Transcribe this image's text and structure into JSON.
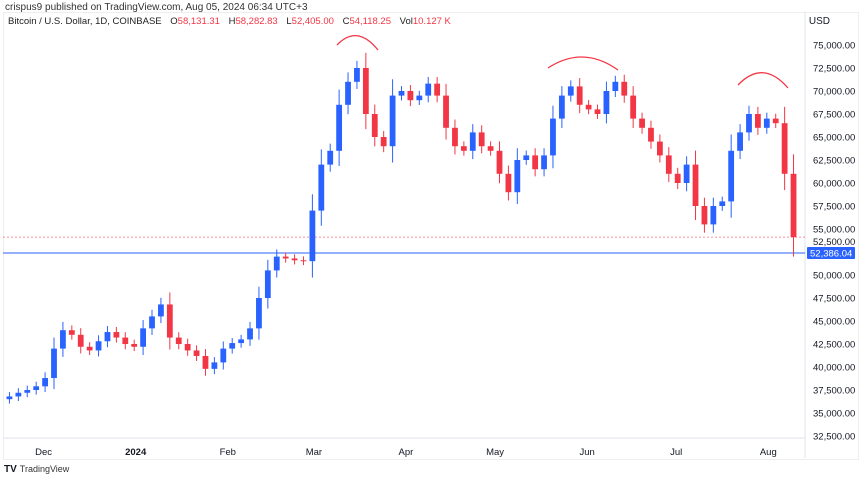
{
  "publisher": "crispus9 published on TradingView.com, Aug 05, 2024 06:34 UTC+3",
  "legend": {
    "symbol": "Bitcoin / U.S. Dollar, 1D, COINBASE",
    "o_label": "O",
    "o": "58,131.31",
    "h_label": "H",
    "h": "58,282.83",
    "l_label": "L",
    "l": "52,405.00",
    "c_label": "C",
    "c": "54,118.25",
    "vol_label": "Vol",
    "vol": "10.127 K"
  },
  "currency": "USD",
  "logo_text": "TradingView",
  "colors": {
    "up": "#2962ff",
    "down": "#f23645",
    "hline": "#2962ff",
    "annotation": "#f23645"
  },
  "chart_data": {
    "type": "candlestick",
    "title": "Bitcoin / U.S. Dollar, 1D, COINBASE",
    "ylim": [
      31500,
      77000
    ],
    "yticks": [
      75000,
      72500,
      70000,
      67500,
      65000,
      62500,
      60000,
      57500,
      55000,
      52500,
      50000,
      47500,
      45000,
      42500,
      40000,
      37500,
      35000,
      32500
    ],
    "ytick_labels": [
      "75,000.00",
      "72,500.00",
      "70,000.00",
      "67,500.00",
      "65,000.00",
      "62,500.00",
      "60,000.00",
      "57,500.00",
      "55,000.00",
      "52,500.00",
      "50,000.00",
      "47,500.00",
      "45,000.00",
      "42,500.00",
      "40,000.00",
      "37,500.00",
      "35,000.00",
      "32,500.00"
    ],
    "xticks": [
      "Dec",
      "2024",
      "Feb",
      "Mar",
      "Apr",
      "May",
      "Jun",
      "Jul",
      "Aug"
    ],
    "xtick_days": [
      13,
      44,
      75,
      104,
      135,
      165,
      196,
      226,
      257
    ],
    "candle_interval_days": 3,
    "closes": [
      36800,
      37200,
      37500,
      37900,
      38800,
      42000,
      44000,
      43500,
      42200,
      41800,
      42800,
      43800,
      43200,
      42500,
      42200,
      44200,
      45500,
      46800,
      43200,
      42500,
      41800,
      41200,
      39800,
      40500,
      42000,
      42600,
      43000,
      44200,
      47500,
      50500,
      52000,
      51800,
      51600,
      51500,
      57000,
      62000,
      63500,
      68500,
      71000,
      72500,
      67500,
      65000,
      64000,
      69500,
      70000,
      69000,
      69500,
      70800,
      69500,
      66000,
      64000,
      63500,
      65500,
      64000,
      63500,
      61000,
      59000,
      62500,
      63000,
      61500,
      63000,
      67000,
      69500,
      70500,
      68500,
      68000,
      67500,
      70000,
      71000,
      69500,
      67000,
      66000,
      64500,
      63000,
      61000,
      60000,
      62000,
      57500,
      55500,
      57500,
      58000,
      63500,
      65500,
      67500,
      66000,
      67000,
      66500,
      61000,
      54118
    ],
    "first_open": 36500,
    "horizontal_line": {
      "value": 52386.04,
      "label": "52,386.04"
    },
    "last_price_line": 54118.25
  }
}
